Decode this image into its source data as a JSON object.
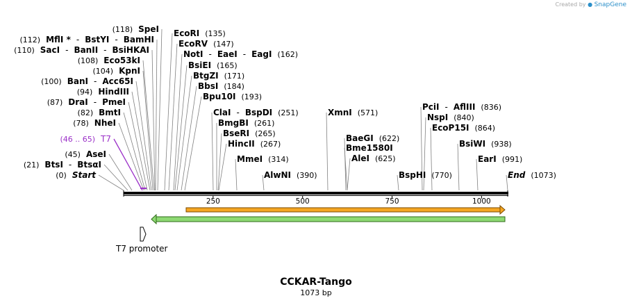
{
  "credit": {
    "prefix": "Created by",
    "brand": "SnapGene"
  },
  "title": "CCKAR-Tango",
  "subtitle": "1073 bp",
  "sequence_length": 1073,
  "ruler_ticks": [
    "250",
    "500",
    "750",
    "1000"
  ],
  "colors": {
    "arrow_orange": "#f5a623",
    "arrow_green": "#8ed973",
    "t7": "#9b30c8"
  },
  "features": [
    {
      "name": "T7 promoter",
      "start": 46,
      "end": 65,
      "strand": "+",
      "shape": "open-arrow"
    },
    {
      "name": "",
      "start": 175,
      "end": 1072,
      "strand": "+",
      "color": "#f5a623"
    },
    {
      "name": "",
      "start": 81,
      "end": 1072,
      "strand": "-",
      "color": "#8ed973"
    }
  ],
  "sites": [
    {
      "site": 0,
      "parts": [
        {
          "t": "(118)",
          "k": "pos"
        },
        {
          "t": "SpeI",
          "k": "en"
        }
      ]
    },
    {
      "site": 0,
      "parts": [
        {
          "t": "(112)",
          "k": "pos"
        },
        {
          "t": "MflI *",
          "k": "en"
        },
        {
          "t": "-",
          "k": "dash"
        },
        {
          "t": "BstYI",
          "k": "en"
        },
        {
          "t": "-",
          "k": "dash"
        },
        {
          "t": "BamHI",
          "k": "en"
        }
      ]
    },
    {
      "site": 0,
      "parts": [
        {
          "t": "(110)",
          "k": "pos"
        },
        {
          "t": "SacI",
          "k": "en"
        },
        {
          "t": "-",
          "k": "dash"
        },
        {
          "t": "BanII",
          "k": "en"
        },
        {
          "t": "-",
          "k": "dash"
        },
        {
          "t": "BsiHKAI",
          "k": "en"
        }
      ]
    },
    {
      "site": 0,
      "parts": [
        {
          "t": "(108)",
          "k": "pos"
        },
        {
          "t": "Eco53kI",
          "k": "en"
        }
      ]
    },
    {
      "site": 0,
      "parts": [
        {
          "t": "(104)",
          "k": "pos"
        },
        {
          "t": "KpnI",
          "k": "en"
        }
      ]
    },
    {
      "site": 0,
      "parts": [
        {
          "t": "(100)",
          "k": "pos"
        },
        {
          "t": "BanI",
          "k": "en"
        },
        {
          "t": "-",
          "k": "dash"
        },
        {
          "t": "Acc65I",
          "k": "en"
        }
      ]
    },
    {
      "site": 0,
      "parts": [
        {
          "t": "(94)",
          "k": "pos"
        },
        {
          "t": "HindIII",
          "k": "en"
        }
      ]
    },
    {
      "site": 0,
      "parts": [
        {
          "t": "(87)",
          "k": "pos"
        },
        {
          "t": "DraI",
          "k": "en"
        },
        {
          "t": "-",
          "k": "dash"
        },
        {
          "t": "PmeI",
          "k": "en"
        }
      ]
    },
    {
      "site": 0,
      "parts": [
        {
          "t": "(82)",
          "k": "pos"
        },
        {
          "t": "BmtI",
          "k": "en"
        }
      ]
    },
    {
      "site": 0,
      "parts": [
        {
          "t": "(78)",
          "k": "pos"
        },
        {
          "t": "NheI",
          "k": "en"
        }
      ]
    },
    {
      "site": 0,
      "parts": [
        {
          "t": "(46 .. 65)",
          "k": "pos purple"
        },
        {
          "t": "T7",
          "k": "feat purple"
        }
      ]
    },
    {
      "site": 0,
      "parts": [
        {
          "t": "(45)",
          "k": "pos"
        },
        {
          "t": "AseI",
          "k": "en"
        }
      ]
    },
    {
      "site": 0,
      "parts": [
        {
          "t": "(21)",
          "k": "pos"
        },
        {
          "t": "BtsI",
          "k": "en"
        },
        {
          "t": "-",
          "k": "dash"
        },
        {
          "t": "BtsαI",
          "k": "en"
        }
      ]
    },
    {
      "site": 0,
      "parts": [
        {
          "t": "(0)",
          "k": "pos"
        },
        {
          "t": "Start",
          "k": "en ital"
        }
      ]
    },
    {
      "site": 0,
      "parts": [
        {
          "t": "EcoRI",
          "k": "en"
        },
        {
          "t": "(135)",
          "k": "pos"
        }
      ]
    },
    {
      "site": 0,
      "parts": [
        {
          "t": "EcoRV",
          "k": "en"
        },
        {
          "t": "(147)",
          "k": "pos"
        }
      ]
    },
    {
      "site": 0,
      "parts": [
        {
          "t": "NotI",
          "k": "en"
        },
        {
          "t": "-",
          "k": "dash"
        },
        {
          "t": "EaeI",
          "k": "en"
        },
        {
          "t": "-",
          "k": "dash"
        },
        {
          "t": "EagI",
          "k": "en"
        },
        {
          "t": "(162)",
          "k": "pos"
        }
      ]
    },
    {
      "site": 0,
      "parts": [
        {
          "t": "BsiEI",
          "k": "en"
        },
        {
          "t": "(165)",
          "k": "pos"
        }
      ]
    },
    {
      "site": 0,
      "parts": [
        {
          "t": "BtgZI",
          "k": "en"
        },
        {
          "t": "(171)",
          "k": "pos"
        }
      ]
    },
    {
      "site": 0,
      "parts": [
        {
          "t": "BbsI",
          "k": "en"
        },
        {
          "t": "(184)",
          "k": "pos"
        }
      ]
    },
    {
      "site": 0,
      "parts": [
        {
          "t": "Bpu10I",
          "k": "en"
        },
        {
          "t": "(193)",
          "k": "pos"
        }
      ]
    },
    {
      "site": 0,
      "parts": [
        {
          "t": "ClaI",
          "k": "en"
        },
        {
          "t": "-",
          "k": "dash"
        },
        {
          "t": "BspDI",
          "k": "en"
        },
        {
          "t": "(251)",
          "k": "pos"
        }
      ]
    },
    {
      "site": 0,
      "parts": [
        {
          "t": "BmgBI",
          "k": "en"
        },
        {
          "t": "(261)",
          "k": "pos"
        }
      ]
    },
    {
      "site": 0,
      "parts": [
        {
          "t": "BseRI",
          "k": "en"
        },
        {
          "t": "(265)",
          "k": "pos"
        }
      ]
    },
    {
      "site": 0,
      "parts": [
        {
          "t": "HincII",
          "k": "en"
        },
        {
          "t": "(267)",
          "k": "pos"
        }
      ]
    },
    {
      "site": 0,
      "parts": [
        {
          "t": "MmeI",
          "k": "en"
        },
        {
          "t": "(314)",
          "k": "pos"
        }
      ]
    },
    {
      "site": 0,
      "parts": [
        {
          "t": "AlwNI",
          "k": "en"
        },
        {
          "t": "(390)",
          "k": "pos"
        }
      ]
    },
    {
      "site": 0,
      "parts": [
        {
          "t": "XmnI",
          "k": "en"
        },
        {
          "t": "(571)",
          "k": "pos"
        }
      ]
    },
    {
      "site": 0,
      "parts": [
        {
          "t": "BaeGI",
          "k": "en"
        },
        {
          "t": "(622)",
          "k": "pos"
        }
      ]
    },
    {
      "site": 0,
      "parts": [
        {
          "t": "Bme1580I",
          "k": "en"
        }
      ]
    },
    {
      "site": 0,
      "parts": [
        {
          "t": "AleI",
          "k": "en"
        },
        {
          "t": "(625)",
          "k": "pos"
        }
      ]
    },
    {
      "site": 0,
      "parts": [
        {
          "t": "BspHI",
          "k": "en"
        },
        {
          "t": "(770)",
          "k": "pos"
        }
      ]
    },
    {
      "site": 0,
      "parts": [
        {
          "t": "PciI",
          "k": "en"
        },
        {
          "t": "-",
          "k": "dash"
        },
        {
          "t": "AflIII",
          "k": "en"
        },
        {
          "t": "(836)",
          "k": "pos"
        }
      ]
    },
    {
      "site": 0,
      "parts": [
        {
          "t": "NspI",
          "k": "en"
        },
        {
          "t": "(840)",
          "k": "pos"
        }
      ]
    },
    {
      "site": 0,
      "parts": [
        {
          "t": "EcoP15I",
          "k": "en"
        },
        {
          "t": "(864)",
          "k": "pos"
        }
      ]
    },
    {
      "site": 0,
      "parts": [
        {
          "t": "BsiWI",
          "k": "en"
        },
        {
          "t": "(938)",
          "k": "pos"
        }
      ]
    },
    {
      "site": 0,
      "parts": [
        {
          "t": "EarI",
          "k": "en"
        },
        {
          "t": "(991)",
          "k": "pos"
        }
      ]
    },
    {
      "site": 0,
      "parts": [
        {
          "t": "End",
          "k": "en ital"
        },
        {
          "t": "(1073)",
          "k": "pos"
        }
      ]
    }
  ]
}
